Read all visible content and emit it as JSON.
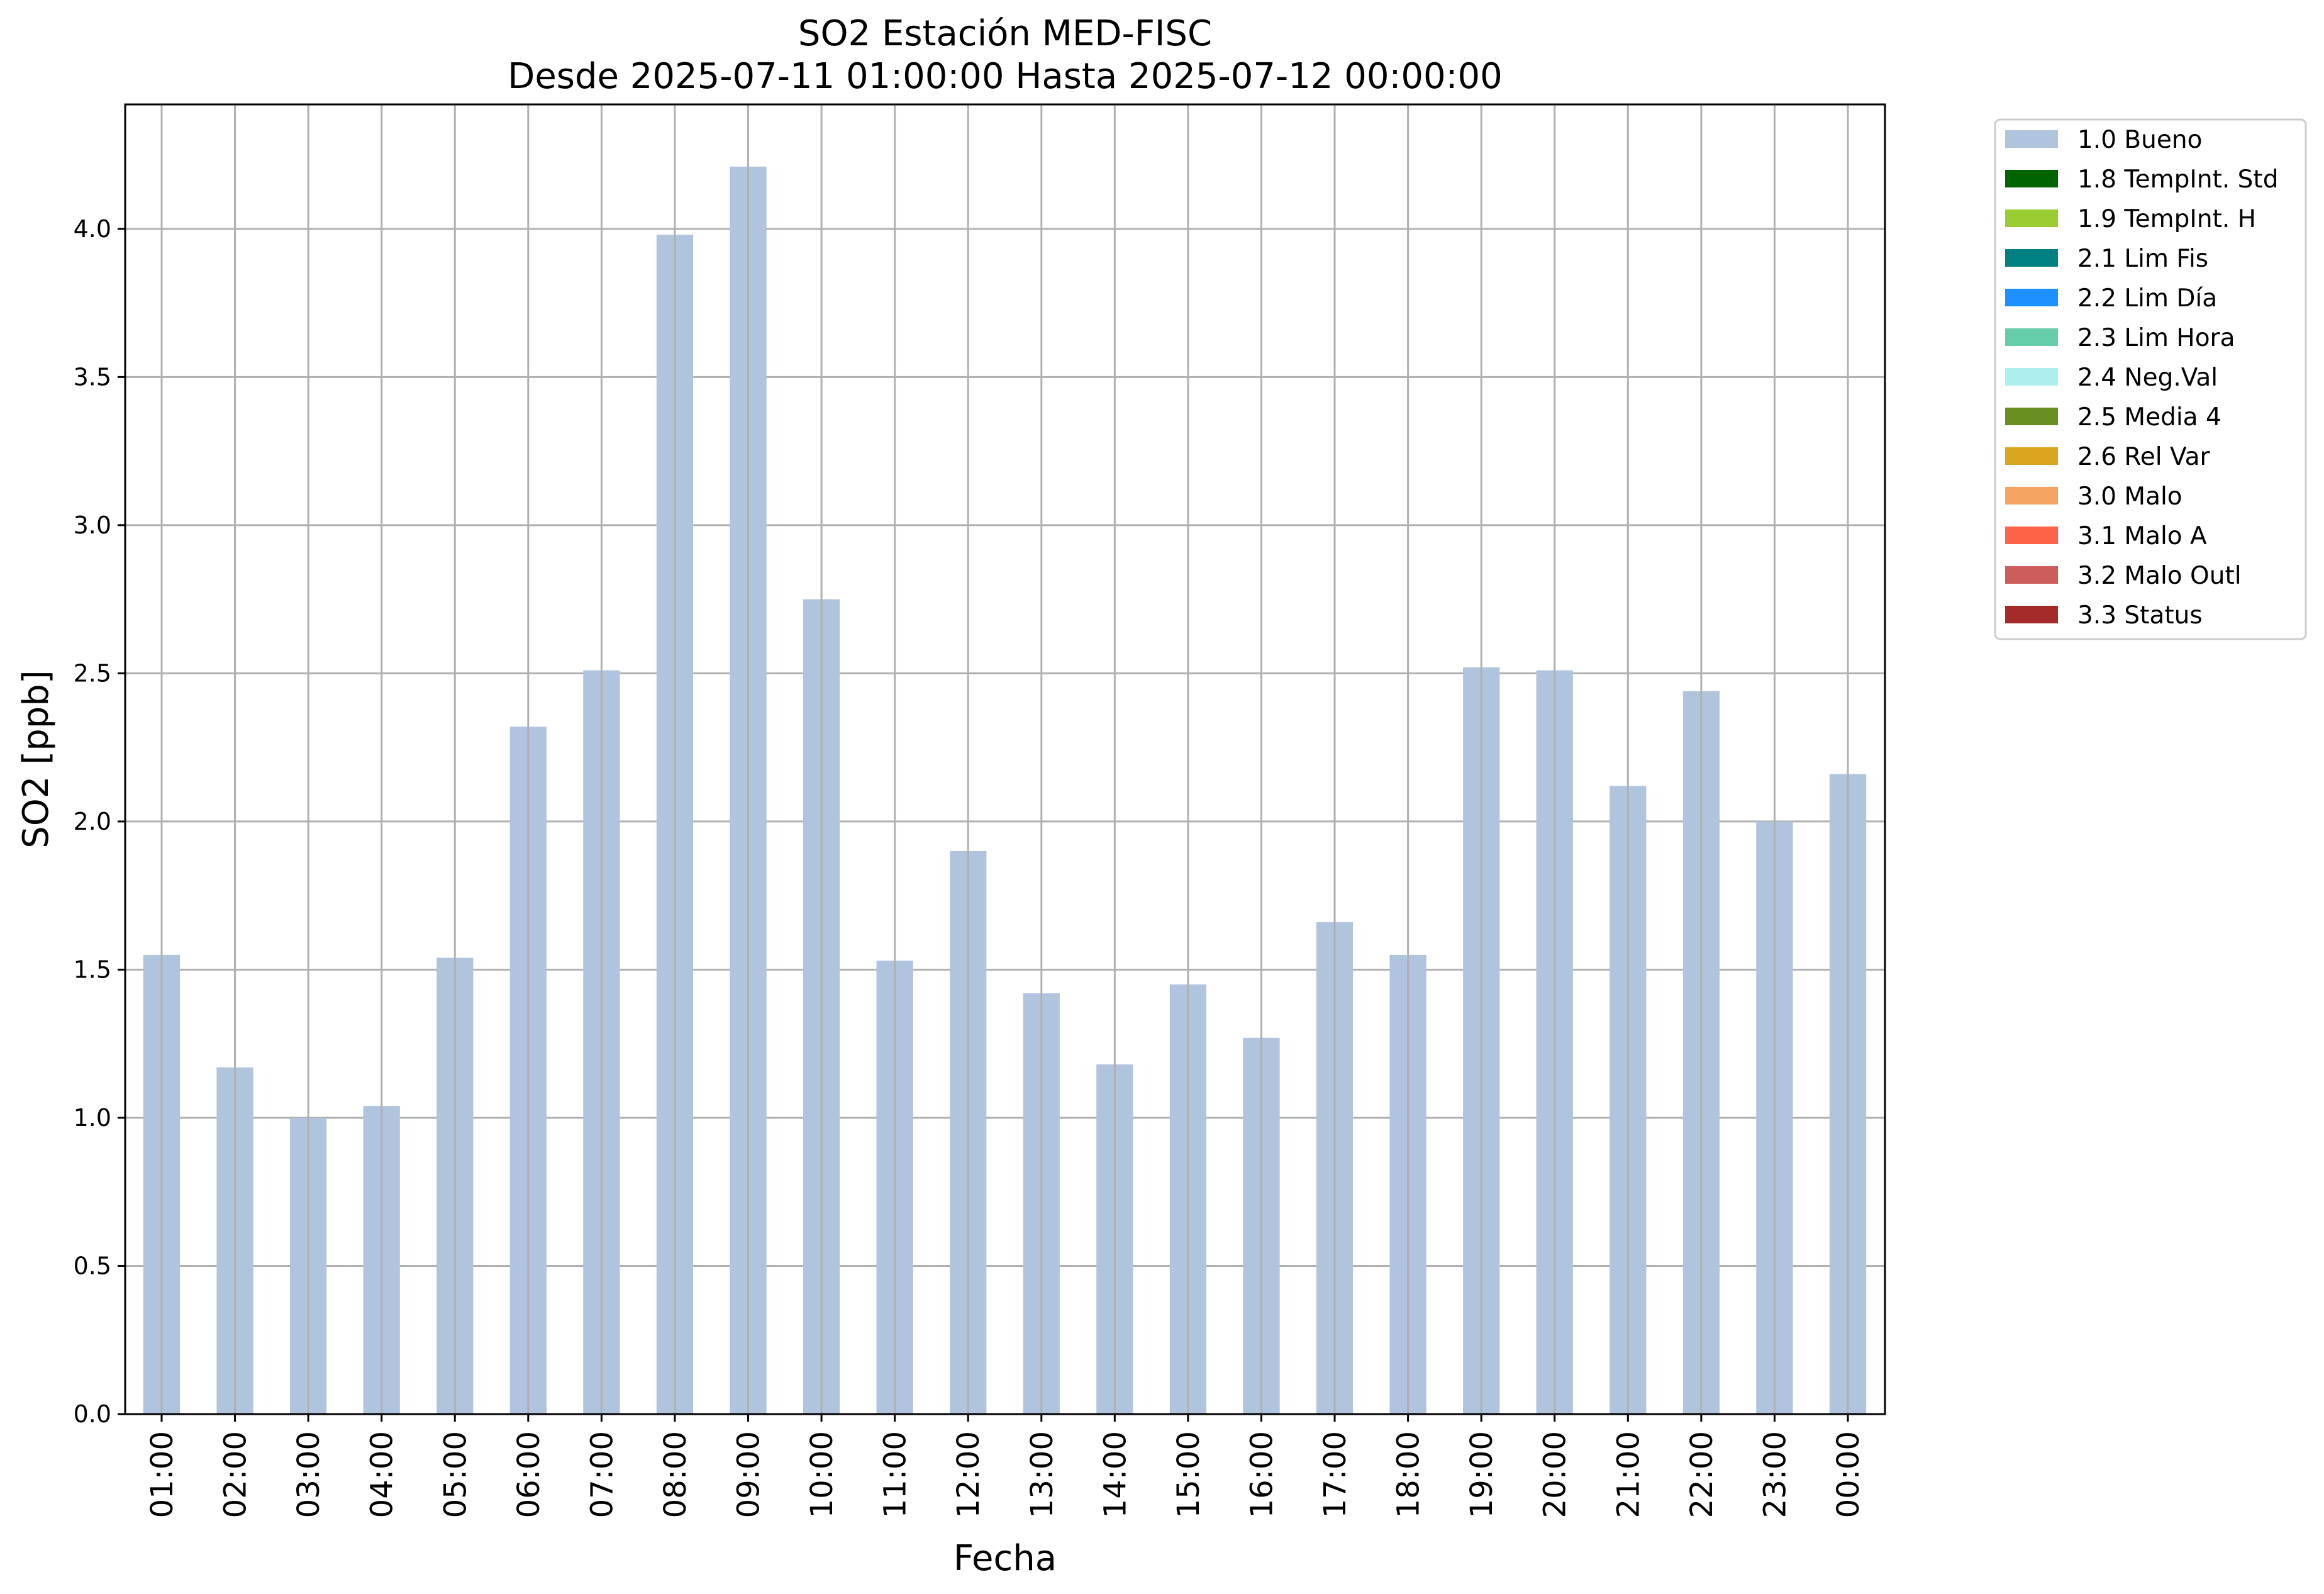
{
  "chart_data": {
    "type": "bar",
    "title": "SO2 Estación MED-FISC",
    "subtitle": "Desde 2025-07-11 01:00:00 Hasta 2025-07-12 00:00:00",
    "xlabel": "Fecha",
    "ylabel": "SO2 [ppb]",
    "ylim": [
      0,
      4.42
    ],
    "yticks": [
      "0.0",
      "0.5",
      "1.0",
      "1.5",
      "2.0",
      "2.5",
      "3.0",
      "3.5",
      "4.0"
    ],
    "grid": true,
    "legend_position": "outside-top-right",
    "categories": [
      "01:00",
      "02:00",
      "03:00",
      "04:00",
      "05:00",
      "06:00",
      "07:00",
      "08:00",
      "09:00",
      "10:00",
      "11:00",
      "12:00",
      "13:00",
      "14:00",
      "15:00",
      "16:00",
      "17:00",
      "18:00",
      "19:00",
      "20:00",
      "21:00",
      "22:00",
      "23:00",
      "00:00"
    ],
    "series": [
      {
        "name": "1.0 Bueno",
        "color": "#b0c4de",
        "values": [
          1.55,
          1.17,
          1.0,
          1.04,
          1.54,
          2.32,
          2.51,
          3.98,
          4.21,
          2.75,
          1.53,
          1.9,
          1.42,
          1.18,
          1.45,
          1.27,
          1.66,
          1.55,
          2.52,
          2.51,
          2.12,
          2.44,
          2.0,
          2.16
        ]
      }
    ],
    "legend": [
      {
        "label": "1.0 Bueno",
        "color": "#b0c4de"
      },
      {
        "label": "1.8 TempInt. Std",
        "color": "#006400"
      },
      {
        "label": "1.9 TempInt. H",
        "color": "#9acd32"
      },
      {
        "label": "2.1 Lim Fis",
        "color": "#008080"
      },
      {
        "label": "2.2 Lim Día",
        "color": "#1e90ff"
      },
      {
        "label": "2.3 Lim Hora",
        "color": "#66cdaa"
      },
      {
        "label": "2.4 Neg.Val",
        "color": "#afeeee"
      },
      {
        "label": "2.5 Media 4",
        "color": "#6b8e23"
      },
      {
        "label": "2.6 Rel Var",
        "color": "#daa520"
      },
      {
        "label": "3.0 Malo",
        "color": "#f4a460"
      },
      {
        "label": "3.1 Malo A",
        "color": "#ff6347"
      },
      {
        "label": "3.2 Malo Outl",
        "color": "#cd5c5c"
      },
      {
        "label": "3.3 Status",
        "color": "#a52a2a"
      }
    ]
  }
}
